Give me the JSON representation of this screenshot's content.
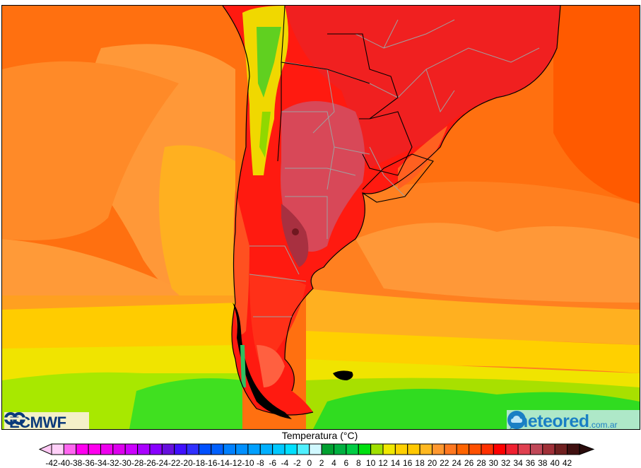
{
  "map": {
    "title": "Temperatura (°C)",
    "region": "South America - Southern Cone",
    "ocean_fill_dominant": "#ff7a10"
  },
  "logos": {
    "left": {
      "label": "ECMWF",
      "icon": "ecmwf-logo-icon"
    },
    "right": {
      "label": "meteored",
      "suffix": ".com.ar",
      "icon": "cloud-bubble-icon"
    }
  },
  "legend": {
    "title": "Temperatura (°C)",
    "min_arrow_color": "#ffc8f4",
    "max_arrow_color": "#2a0c0c",
    "labels": [
      "-42",
      "-40",
      "-38",
      "-36",
      "-34",
      "-32",
      "-30",
      "-28",
      "-26",
      "-24",
      "-22",
      "-20",
      "-18",
      "-16",
      "-14",
      "-12",
      "-10",
      "-8",
      "-6",
      "-4",
      "-2",
      "0",
      "2",
      "4",
      "6",
      "8",
      "10",
      "12",
      "14",
      "16",
      "18",
      "20",
      "22",
      "24",
      "26",
      "28",
      "30",
      "32",
      "34",
      "36",
      "38",
      "40",
      "42"
    ],
    "colors": [
      "#ffd0f8",
      "#ff66f0",
      "#ff00f0",
      "#ff00ee",
      "#ee00ee",
      "#dd00ee",
      "#cc00ff",
      "#aa00ff",
      "#8800ff",
      "#6610dd",
      "#4010ff",
      "#3030ff",
      "#0050ff",
      "#0060ff",
      "#0080ff",
      "#0090ff",
      "#00a0ff",
      "#00b0ff",
      "#00c8ff",
      "#00e0ff",
      "#50f0ff",
      "#d0f8ff",
      "#00a030",
      "#00b040",
      "#00cc44",
      "#00e010",
      "#a0e000",
      "#f0e800",
      "#ffd000",
      "#ffc800",
      "#ffb820",
      "#ff9830",
      "#ff7820",
      "#ff6400",
      "#ff5000",
      "#ff3000",
      "#ff0000",
      "#f02030",
      "#e04050",
      "#c04858",
      "#a03038",
      "#702020",
      "#401010"
    ]
  },
  "chart_data": {
    "type": "heatmap",
    "title": "Temperatura (°C)",
    "colorbar": {
      "min": -42,
      "max": 42,
      "step": 2,
      "ticks": [
        -42,
        -40,
        -38,
        -36,
        -34,
        -32,
        -30,
        -28,
        -26,
        -24,
        -22,
        -20,
        -18,
        -16,
        -14,
        -12,
        -10,
        -8,
        -6,
        -4,
        -2,
        0,
        2,
        4,
        6,
        8,
        10,
        12,
        14,
        16,
        18,
        20,
        22,
        24,
        26,
        28,
        30,
        32,
        34,
        36,
        38,
        40,
        42
      ],
      "extend": "both"
    },
    "observed_ranges": {
      "central_argentina_interior": "36-40",
      "northern_argentina_paraguay_southern_brazil": "30-36",
      "andes_highlands": "8-20",
      "pacific_ocean_mid_latitudes": "22-26",
      "atlantic_offshore_subtropical": "24-28",
      "southern_ocean_near_tierra_del_fuego": "6-12"
    }
  }
}
